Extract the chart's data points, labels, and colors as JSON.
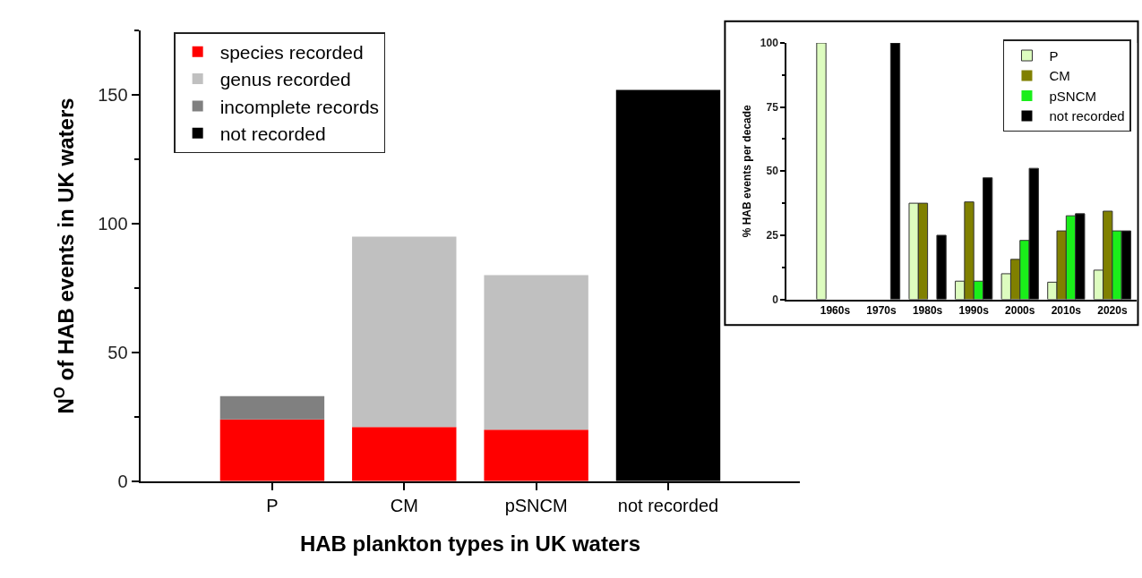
{
  "chart_data": [
    {
      "type": "bar",
      "stacked": true,
      "xlabel": "HAB plankton types in UK waters",
      "ylabel": "N$^{O}$ of HAB events in UK waters",
      "categories": [
        "P",
        "CM",
        "pSNCM",
        "not recorded"
      ],
      "series": [
        {
          "name": "species recorded",
          "color": "#ff0000",
          "values": [
            24,
            21,
            20,
            null
          ]
        },
        {
          "name": "genus recorded",
          "color": "#c0c0c0",
          "values": [
            null,
            74,
            60,
            null
          ]
        },
        {
          "name": "incomplete records",
          "color": "#808080",
          "values": [
            9,
            null,
            null,
            null
          ]
        },
        {
          "name": "not recorded",
          "color": "#000000",
          "values": [
            null,
            null,
            null,
            152
          ]
        }
      ],
      "ylim": [
        0,
        175
      ],
      "yticks": [
        0,
        {
          "value": 25,
          "label": null
        },
        50,
        {
          "value": 75,
          "label": null
        },
        100,
        {
          "value": 125,
          "label": null
        },
        150,
        {
          "value": 175,
          "label": null
        }
      ],
      "legend": "top left"
    },
    {
      "type": "bar",
      "ylabel": "% HAB events per decade",
      "categories": [
        "1960s",
        "1970s",
        "1980s",
        "1990s",
        "2000s",
        "2010s",
        "2020s"
      ],
      "series": [
        {
          "name": "P",
          "color": "#ddfcbf",
          "values": [
            100,
            0,
            37.5,
            7.1,
            10.0,
            6.7,
            11.4
          ]
        },
        {
          "name": "CM",
          "color": "#808000",
          "values": [
            0,
            0,
            37.5,
            38.0,
            15.6,
            26.7,
            34.4
          ]
        },
        {
          "name": "pSNCM",
          "color": "#1aee1a",
          "values": [
            0,
            0,
            0,
            7.1,
            23.0,
            32.6,
            26.7
          ]
        },
        {
          "name": "not recorded",
          "color": "#000000",
          "values": [
            0,
            100,
            25,
            47.4,
            51.1,
            33.4,
            26.7
          ]
        }
      ],
      "ylim": [
        0,
        100
      ],
      "yticks": [
        0,
        {
          "value": 12.5,
          "label": null
        },
        25,
        {
          "value": 37.5,
          "label": null
        },
        50,
        {
          "value": 62.5,
          "label": null
        },
        75,
        {
          "value": 87.5,
          "label": null
        },
        100
      ],
      "legend": "top right"
    }
  ]
}
